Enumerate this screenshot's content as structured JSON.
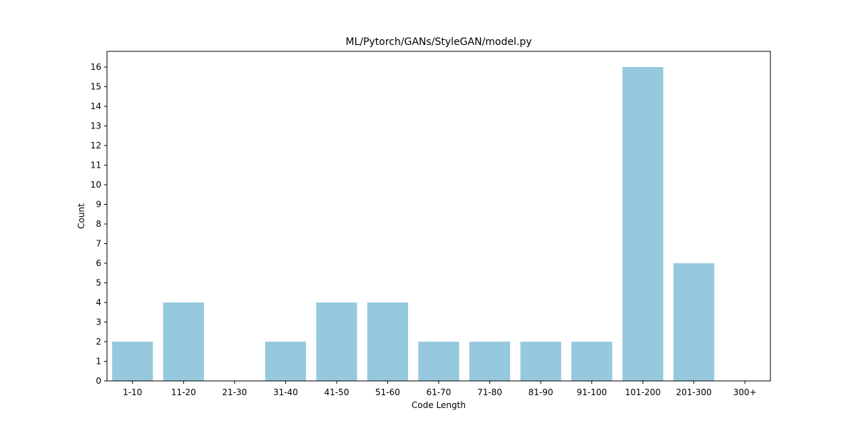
{
  "chart_data": {
    "type": "bar",
    "title": "ML/Pytorch/GANs/StyleGAN/model.py",
    "xlabel": "Code Length",
    "ylabel": "Count",
    "categories": [
      "1-10",
      "11-20",
      "21-30",
      "31-40",
      "41-50",
      "51-60",
      "61-70",
      "71-80",
      "81-90",
      "91-100",
      "101-200",
      "201-300",
      "300+"
    ],
    "values": [
      2,
      4,
      0,
      2,
      4,
      4,
      2,
      2,
      2,
      2,
      16,
      6,
      0
    ],
    "ylim": [
      0,
      16.8
    ],
    "yticks": [
      0,
      1,
      2,
      3,
      4,
      5,
      6,
      7,
      8,
      9,
      10,
      11,
      12,
      13,
      14,
      15,
      16
    ],
    "bar_color": "#96c9de",
    "grid": false,
    "legend": "none"
  }
}
